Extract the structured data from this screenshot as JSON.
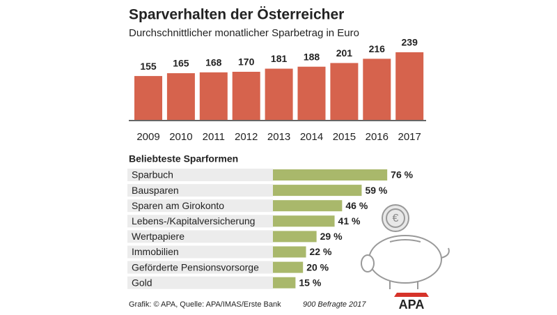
{
  "chart_data": [
    {
      "type": "bar",
      "title": "Sparverhalten der Österreicher",
      "subtitle": "Durchschnittlicher monatlicher Sparbetrag in Euro",
      "categories": [
        "2009",
        "2010",
        "2011",
        "2012",
        "2013",
        "2014",
        "2015",
        "2016",
        "2017"
      ],
      "values": [
        155,
        165,
        168,
        170,
        181,
        188,
        201,
        216,
        239
      ],
      "color": "#d6634d"
    },
    {
      "type": "hbar",
      "title": "Beliebteste Sparformen",
      "categories": [
        "Sparbuch",
        "Bausparen",
        "Sparen am Girokonto",
        "Lebens-/Kapitalversicherung",
        "Wertpapiere",
        "Immobilien",
        "Geförderte Pensionsvorsorge",
        "Gold"
      ],
      "values": [
        76,
        59,
        46,
        41,
        29,
        22,
        20,
        15
      ],
      "value_labels": [
        "76 %",
        "59 %",
        "46 %",
        "41 %",
        "29 %",
        "22 %",
        "20 %",
        "15 %"
      ],
      "color": "#a9b86b"
    }
  ],
  "source": "Grafik: © APA, Quelle: APA/IMAS/Erste Bank",
  "note": "900 Befragte 2017",
  "logo": "APA"
}
